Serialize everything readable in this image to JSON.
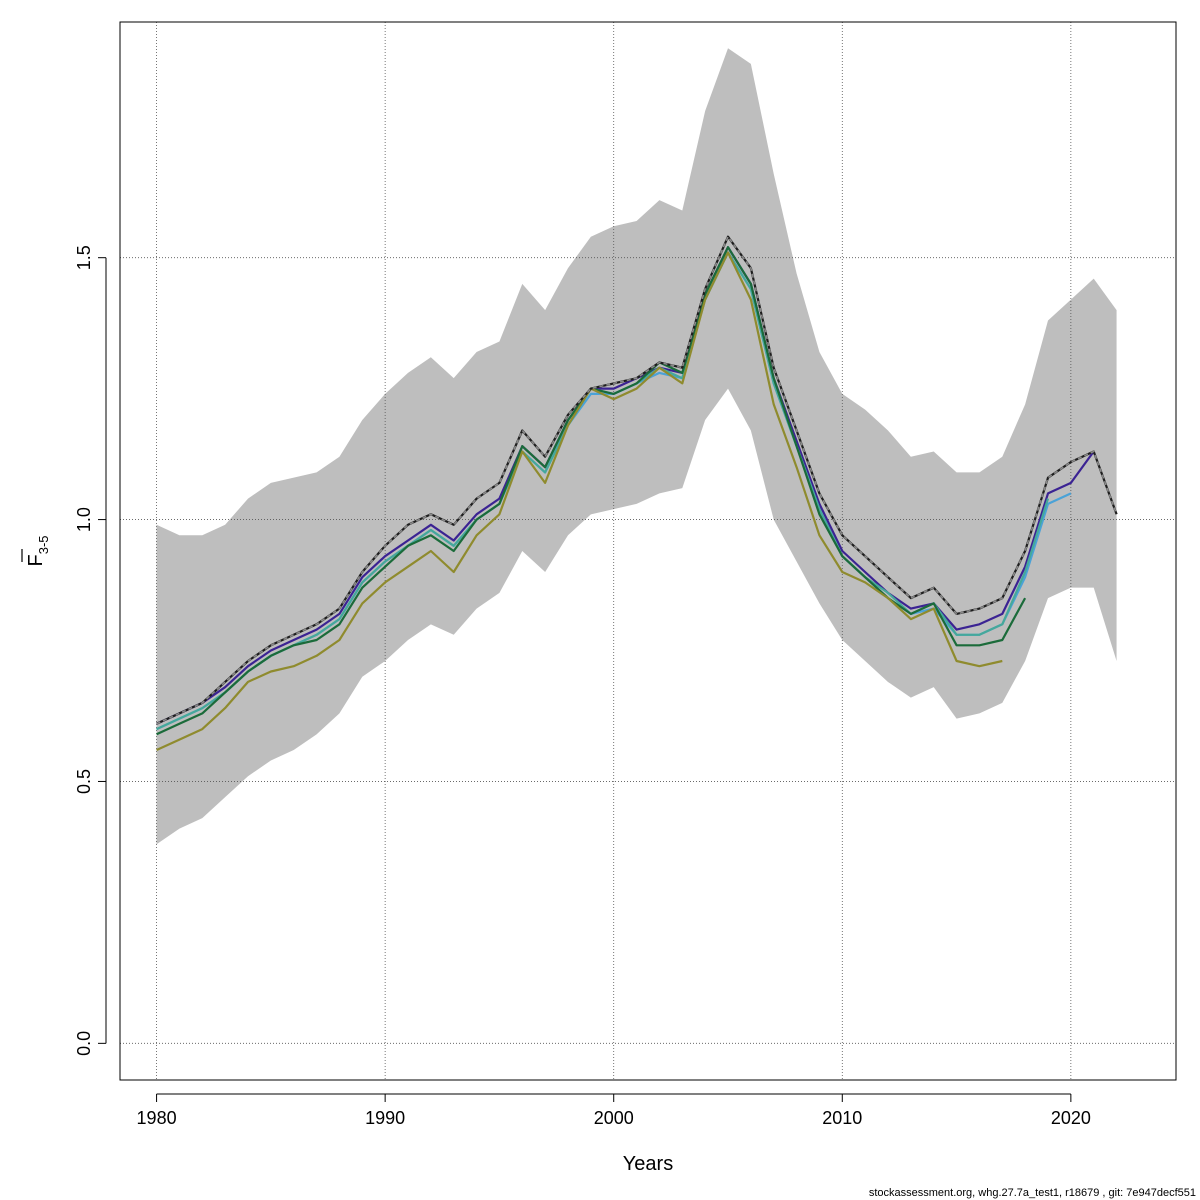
{
  "chart_data": {
    "type": "line",
    "xlabel": "Years",
    "ylabel_main": "F",
    "ylabel_sub": "3-5",
    "xlim": [
      1978.4,
      2024.6
    ],
    "ylim": [
      -0.07,
      1.95
    ],
    "x_ticks": [
      1980,
      1990,
      2000,
      2010,
      2020
    ],
    "y_ticks": [
      0.0,
      0.5,
      1.0,
      1.5
    ],
    "x_tick_labels": [
      "1980",
      "1990",
      "2000",
      "2010",
      "2020"
    ],
    "y_tick_labels": [
      "0.0",
      "0.5",
      "1.0",
      "1.5"
    ],
    "grid": true,
    "confidence_band": {
      "x": [
        1980,
        1981,
        1982,
        1983,
        1984,
        1985,
        1986,
        1987,
        1988,
        1989,
        1990,
        1991,
        1992,
        1993,
        1994,
        1995,
        1996,
        1997,
        1998,
        1999,
        2000,
        2001,
        2002,
        2003,
        2004,
        2005,
        2006,
        2007,
        2008,
        2009,
        2010,
        2011,
        2012,
        2013,
        2014,
        2015,
        2016,
        2017,
        2018,
        2019,
        2020,
        2021,
        2022
      ],
      "lower": [
        0.38,
        0.41,
        0.43,
        0.47,
        0.51,
        0.54,
        0.56,
        0.59,
        0.63,
        0.7,
        0.73,
        0.77,
        0.8,
        0.78,
        0.83,
        0.86,
        0.94,
        0.9,
        0.97,
        1.01,
        1.02,
        1.03,
        1.05,
        1.06,
        1.19,
        1.25,
        1.17,
        1.0,
        0.92,
        0.84,
        0.77,
        0.73,
        0.69,
        0.66,
        0.68,
        0.62,
        0.63,
        0.65,
        0.73,
        0.85,
        0.87,
        0.87,
        0.73
      ],
      "upper": [
        0.99,
        0.97,
        0.97,
        0.99,
        1.04,
        1.07,
        1.08,
        1.09,
        1.12,
        1.19,
        1.24,
        1.28,
        1.31,
        1.27,
        1.32,
        1.34,
        1.45,
        1.4,
        1.48,
        1.54,
        1.56,
        1.57,
        1.61,
        1.59,
        1.78,
        1.9,
        1.87,
        1.66,
        1.47,
        1.32,
        1.24,
        1.21,
        1.17,
        1.12,
        1.13,
        1.09,
        1.09,
        1.12,
        1.22,
        1.38,
        1.42,
        1.46,
        1.4
      ],
      "color": "#bebebe"
    },
    "series": [
      {
        "color": "#3b2393",
        "dashed": false,
        "x": [
          1980,
          1981,
          1982,
          1983,
          1984,
          1985,
          1986,
          1987,
          1988,
          1989,
          1990,
          1991,
          1992,
          1993,
          1994,
          1995,
          1996,
          1997,
          1998,
          1999,
          2000,
          2001,
          2002,
          2003,
          2004,
          2005,
          2006,
          2007,
          2008,
          2009,
          2010,
          2011,
          2012,
          2013,
          2014,
          2015,
          2016,
          2017,
          2018,
          2019,
          2020,
          2021
        ],
        "values": [
          0.61,
          0.63,
          0.65,
          0.68,
          0.72,
          0.75,
          0.77,
          0.79,
          0.82,
          0.89,
          0.93,
          0.96,
          0.99,
          0.96,
          1.01,
          1.04,
          1.14,
          1.1,
          1.19,
          1.25,
          1.25,
          1.27,
          1.29,
          1.28,
          1.43,
          1.52,
          1.45,
          1.27,
          1.15,
          1.03,
          0.94,
          0.9,
          0.86,
          0.83,
          0.84,
          0.79,
          0.8,
          0.82,
          0.91,
          1.05,
          1.07,
          1.13
        ]
      },
      {
        "color": "#4aa2d7",
        "dashed": false,
        "x": [
          1980,
          1981,
          1982,
          1983,
          1984,
          1985,
          1986,
          1987,
          1988,
          1989,
          1990,
          1991,
          1992,
          1993,
          1994,
          1995,
          1996,
          1997,
          1998,
          1999,
          2000,
          2001,
          2002,
          2003,
          2004,
          2005,
          2006,
          2007,
          2008,
          2009,
          2010,
          2011,
          2012,
          2013,
          2014,
          2015,
          2016,
          2017,
          2018,
          2019,
          2020
        ],
        "values": [
          0.6,
          0.62,
          0.64,
          0.67,
          0.71,
          0.74,
          0.76,
          0.78,
          0.81,
          0.88,
          0.92,
          0.95,
          0.98,
          0.95,
          1.0,
          1.03,
          1.13,
          1.09,
          1.18,
          1.24,
          1.24,
          1.26,
          1.28,
          1.27,
          1.42,
          1.51,
          1.44,
          1.26,
          1.14,
          1.02,
          0.93,
          0.89,
          0.85,
          0.82,
          0.83,
          0.78,
          0.78,
          0.8,
          0.89,
          1.03,
          1.05
        ]
      },
      {
        "color": "#45a89b",
        "dashed": false,
        "x": [
          1980,
          1981,
          1982,
          1983,
          1984,
          1985,
          1986,
          1987,
          1988,
          1989,
          1990,
          1991,
          1992,
          1993,
          1994,
          1995,
          1996,
          1997,
          1998,
          1999,
          2000,
          2001,
          2002,
          2003,
          2004,
          2005,
          2006,
          2007,
          2008,
          2009,
          2010,
          2011,
          2012,
          2013,
          2014,
          2015,
          2016,
          2017,
          2018,
          2019
        ],
        "values": [
          0.6,
          0.62,
          0.64,
          0.67,
          0.71,
          0.74,
          0.76,
          0.78,
          0.81,
          0.88,
          0.92,
          0.95,
          0.98,
          0.95,
          1.0,
          1.03,
          1.13,
          1.09,
          1.18,
          1.25,
          1.24,
          1.26,
          1.29,
          1.27,
          1.42,
          1.51,
          1.44,
          1.26,
          1.14,
          1.02,
          0.93,
          0.89,
          0.86,
          0.82,
          0.84,
          0.78,
          0.78,
          0.8,
          0.9,
          1.04
        ]
      },
      {
        "color": "#1b6b3a",
        "dashed": false,
        "x": [
          1980,
          1981,
          1982,
          1983,
          1984,
          1985,
          1986,
          1987,
          1988,
          1989,
          1990,
          1991,
          1992,
          1993,
          1994,
          1995,
          1996,
          1997,
          1998,
          1999,
          2000,
          2001,
          2002,
          2003,
          2004,
          2005,
          2006,
          2007,
          2008,
          2009,
          2010,
          2011,
          2012,
          2013,
          2014,
          2015,
          2016,
          2017,
          2018
        ],
        "values": [
          0.59,
          0.61,
          0.63,
          0.67,
          0.71,
          0.74,
          0.76,
          0.77,
          0.8,
          0.87,
          0.91,
          0.95,
          0.97,
          0.94,
          1.0,
          1.03,
          1.14,
          1.1,
          1.19,
          1.25,
          1.24,
          1.26,
          1.3,
          1.28,
          1.43,
          1.52,
          1.45,
          1.27,
          1.14,
          1.01,
          0.93,
          0.89,
          0.85,
          0.82,
          0.84,
          0.76,
          0.76,
          0.77,
          0.85
        ]
      },
      {
        "color": "#8f8b2e",
        "dashed": false,
        "x": [
          1980,
          1981,
          1982,
          1983,
          1984,
          1985,
          1986,
          1987,
          1988,
          1989,
          1990,
          1991,
          1992,
          1993,
          1994,
          1995,
          1996,
          1997,
          1998,
          1999,
          2000,
          2001,
          2002,
          2003,
          2004,
          2005,
          2006,
          2007,
          2008,
          2009,
          2010,
          2011,
          2012,
          2013,
          2014,
          2015,
          2016,
          2017
        ],
        "values": [
          0.56,
          0.58,
          0.6,
          0.64,
          0.69,
          0.71,
          0.72,
          0.74,
          0.77,
          0.84,
          0.88,
          0.91,
          0.94,
          0.9,
          0.97,
          1.01,
          1.13,
          1.07,
          1.18,
          1.25,
          1.23,
          1.25,
          1.29,
          1.26,
          1.42,
          1.51,
          1.42,
          1.22,
          1.1,
          0.97,
          0.9,
          0.88,
          0.85,
          0.81,
          0.83,
          0.73,
          0.72,
          0.73
        ]
      },
      {
        "color": "#1e1e1e",
        "dashed": false,
        "x": [
          1980,
          1981,
          1982,
          1983,
          1984,
          1985,
          1986,
          1987,
          1988,
          1989,
          1990,
          1991,
          1992,
          1993,
          1994,
          1995,
          1996,
          1997,
          1998,
          1999,
          2000,
          2001,
          2002,
          2003,
          2004,
          2005,
          2006,
          2007,
          2008,
          2009,
          2010,
          2011,
          2012,
          2013,
          2014,
          2015,
          2016,
          2017,
          2018,
          2019,
          2020,
          2021,
          2022
        ],
        "values": [
          0.61,
          0.63,
          0.65,
          0.69,
          0.73,
          0.76,
          0.78,
          0.8,
          0.83,
          0.9,
          0.95,
          0.99,
          1.01,
          0.99,
          1.04,
          1.07,
          1.17,
          1.12,
          1.2,
          1.25,
          1.26,
          1.27,
          1.3,
          1.29,
          1.44,
          1.54,
          1.48,
          1.29,
          1.17,
          1.05,
          0.97,
          0.93,
          0.89,
          0.85,
          0.87,
          0.82,
          0.83,
          0.85,
          0.94,
          1.08,
          1.11,
          1.13,
          1.01
        ]
      },
      {
        "color": "#8a8a8a",
        "dashed": true,
        "x": [
          1980,
          1981,
          1982,
          1983,
          1984,
          1985,
          1986,
          1987,
          1988,
          1989,
          1990,
          1991,
          1992,
          1993,
          1994,
          1995,
          1996,
          1997,
          1998,
          1999,
          2000,
          2001,
          2002,
          2003,
          2004,
          2005,
          2006,
          2007,
          2008,
          2009,
          2010,
          2011,
          2012,
          2013,
          2014,
          2015,
          2016,
          2017,
          2018,
          2019,
          2020,
          2021,
          2022
        ],
        "values": [
          0.61,
          0.63,
          0.65,
          0.69,
          0.73,
          0.76,
          0.78,
          0.8,
          0.83,
          0.9,
          0.95,
          0.99,
          1.01,
          0.99,
          1.04,
          1.07,
          1.17,
          1.12,
          1.2,
          1.25,
          1.26,
          1.27,
          1.3,
          1.29,
          1.44,
          1.54,
          1.48,
          1.29,
          1.17,
          1.05,
          0.97,
          0.93,
          0.89,
          0.85,
          0.87,
          0.82,
          0.83,
          0.85,
          0.94,
          1.08,
          1.11,
          1.13,
          1.01
        ]
      }
    ]
  },
  "footer": {
    "note": "stockassessment.org, whg.27.7a_test1, r18679 , git: 7e947decf551"
  }
}
